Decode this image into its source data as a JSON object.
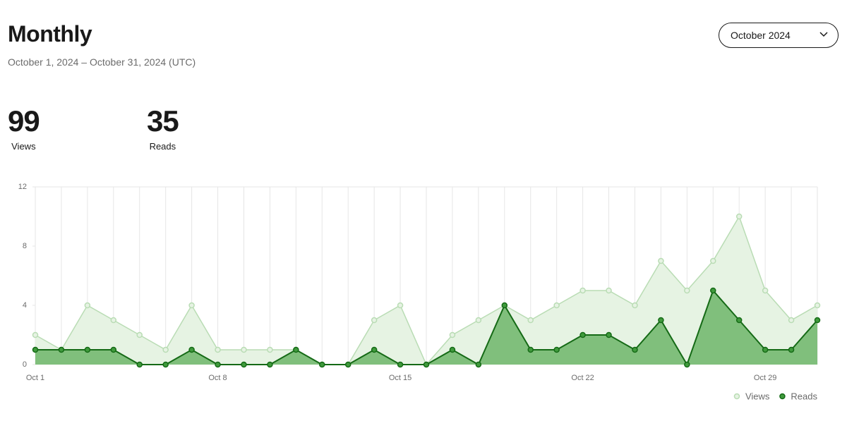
{
  "header": {
    "title": "Monthly",
    "subtitle": "October 1, 2024 – October 31, 2024 (UTC)",
    "dropdown": "October 2024"
  },
  "stats": [
    {
      "value": 99,
      "label": "Views"
    },
    {
      "value": 35,
      "label": "Reads"
    }
  ],
  "chart_data": {
    "type": "area",
    "categories": [
      "Oct 1",
      null,
      null,
      null,
      null,
      null,
      null,
      "Oct 8",
      null,
      null,
      null,
      null,
      null,
      null,
      "Oct 15",
      null,
      null,
      null,
      null,
      null,
      null,
      "Oct 22",
      null,
      null,
      null,
      null,
      null,
      null,
      "Oct 29",
      null,
      null
    ],
    "series": [
      {
        "name": "Views",
        "color": "#b9dcb4",
        "area_color": "#e6f3e3",
        "values": [
          2,
          1,
          4,
          3,
          2,
          1,
          4,
          1,
          1,
          1,
          1,
          0,
          0,
          3,
          4,
          0,
          2,
          3,
          4,
          3,
          4,
          5,
          5,
          4,
          7,
          5,
          7,
          10,
          5,
          3,
          4
        ]
      },
      {
        "name": "Reads",
        "color": "#156a16",
        "area_color": "#80bf7c",
        "values": [
          1,
          1,
          1,
          1,
          0,
          0,
          1,
          0,
          0,
          0,
          1,
          0,
          0,
          1,
          0,
          0,
          1,
          0,
          4,
          1,
          1,
          2,
          2,
          1,
          3,
          0,
          5,
          3,
          1,
          1,
          3
        ]
      }
    ],
    "ylim": [
      0,
      12
    ],
    "yticks": [
      0,
      4,
      8,
      12
    ],
    "grid": true,
    "legend": "bottom-right"
  }
}
